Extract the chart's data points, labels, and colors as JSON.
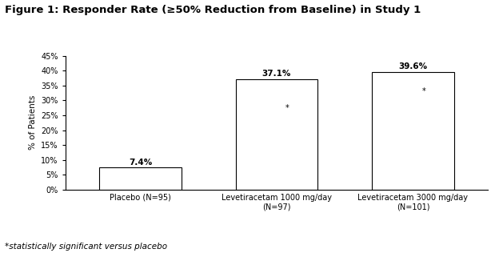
{
  "title": "Figure 1: Responder Rate (≥50% Reduction from Baseline) in Study 1",
  "categories": [
    "Placebo (N=95)",
    "Levetiracetam 1000 mg/day\n(N=97)",
    "Levetiracetam 3000 mg/day\n(N=101)"
  ],
  "values": [
    7.4,
    37.1,
    39.6
  ],
  "bar_labels": [
    "7.4%",
    "37.1%",
    "39.6%"
  ],
  "ylabel": "% of Patients",
  "ylim": [
    0,
    45
  ],
  "yticks": [
    0,
    5,
    10,
    15,
    20,
    25,
    30,
    35,
    40,
    45
  ],
  "ytick_labels": [
    "0%",
    "5%",
    "10%",
    "15%",
    "20%",
    "25%",
    "30%",
    "35%",
    "40%",
    "45%"
  ],
  "bar_color": "#ffffff",
  "bar_edgecolor": "#000000",
  "background_color": "#ffffff",
  "footnote": "*statistically significant versus placebo",
  "star_positions": [
    {
      "bar_index": 1,
      "y": 27.5
    },
    {
      "bar_index": 2,
      "y": 33.0
    }
  ],
  "title_fontsize": 9.5,
  "label_fontsize": 7.5,
  "tick_fontsize": 7,
  "bar_label_fontsize": 7.5,
  "footnote_fontsize": 7.5,
  "bar_width": 0.6
}
